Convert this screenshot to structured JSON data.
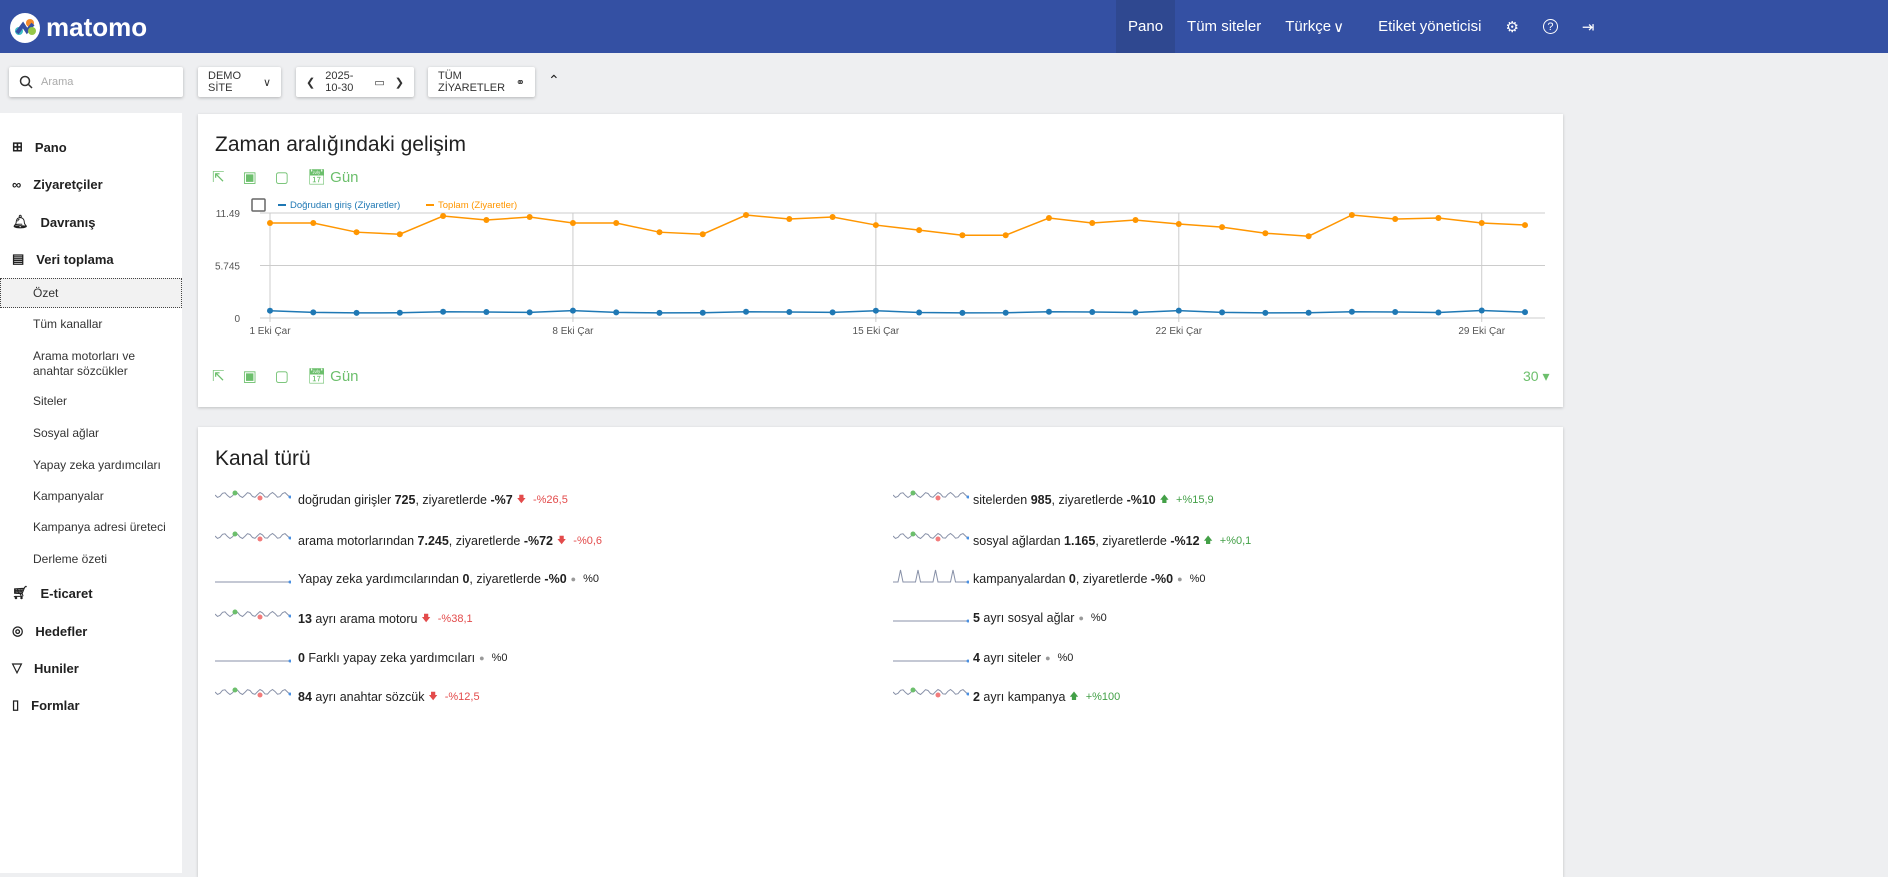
{
  "header": {
    "brand": "matomo",
    "nav": [
      "Pano",
      "Tüm siteler",
      "Türkçe",
      "Etiket yöneticisi"
    ]
  },
  "toolbar": {
    "search_placeholder": "Arama",
    "site": "DEMO SİTE",
    "date": "2025-10-30",
    "segment": "TÜM ZİYARETLER"
  },
  "sidebar": {
    "categories": [
      "Pano",
      "Ziyaretçiler",
      "Davranış",
      "Veri toplama",
      "E-ticaret",
      "Hedefler",
      "Huniler",
      "Formlar"
    ],
    "subitems": [
      "Özet",
      "Tüm kanallar",
      "Arama motorları ve anahtar sözcükler",
      "Siteler",
      "Sosyal ağlar",
      "Yapay zeka yardımcıları",
      "Kampanyalar",
      "Kampanya adresi üreteci",
      "Derleme özeti"
    ]
  },
  "evolution": {
    "title": "Zaman aralığındaki gelişim",
    "period": "Gün",
    "limit": "30"
  },
  "chart_data": {
    "type": "line",
    "title": "Zaman aralığındaki gelişim",
    "x": [
      "1 Eki Çar",
      "2",
      "3",
      "4",
      "5",
      "6",
      "7",
      "8 Eki Çar",
      "9",
      "10",
      "11",
      "12",
      "13",
      "14",
      "15 Eki Çar",
      "16",
      "17",
      "18",
      "19",
      "20",
      "21",
      "22 Eki Çar",
      "23",
      "24",
      "25",
      "26",
      "27",
      "28",
      "29 Eki Çar",
      "30"
    ],
    "x_tick_labels": [
      "1 Eki Çar",
      "8 Eki Çar",
      "15 Eki Çar",
      "22 Eki Çar",
      "29 Eki Çar"
    ],
    "y_tick_labels": [
      "0",
      "5.745",
      "11.49"
    ],
    "ylim": [
      0,
      11490
    ],
    "series": [
      {
        "name": "Doğrudan giriş (Ziyaretler)",
        "color": "#1f78b4",
        "values": [
          800,
          620,
          560,
          570,
          680,
          660,
          610,
          810,
          620,
          560,
          570,
          680,
          660,
          610,
          800,
          600,
          560,
          570,
          690,
          650,
          600,
          810,
          610,
          560,
          570,
          680,
          660,
          600,
          820,
          640
        ]
      },
      {
        "name": "Toplam (Ziyaretler)",
        "color": "#ff9600",
        "values": [
          10390,
          10390,
          9390,
          9170,
          11160,
          10720,
          11050,
          10390,
          10390,
          9390,
          9170,
          11270,
          10830,
          11050,
          10170,
          9610,
          9060,
          9060,
          10940,
          10390,
          10720,
          10280,
          9950,
          9280,
          8950,
          11270,
          10830,
          10940,
          10390,
          10170
        ]
      }
    ]
  },
  "channels": {
    "title": "Kanal türü",
    "left": [
      {
        "pre": "doğrudan girişler ",
        "value": "725",
        "mid": ", ziyaretlerde ",
        "change": "-%7",
        "trend": "down",
        "pct": "-%26,5"
      },
      {
        "pre": "arama motorlarından ",
        "value": "7.245",
        "mid": ", ziyaretlerde ",
        "change": "-%72",
        "trend": "down",
        "pct": "-%0,6"
      },
      {
        "pre": "Yapay zeka yardımcılarından ",
        "value": "0",
        "mid": ", ziyaretlerde ",
        "change": "-%0",
        "trend": "flat",
        "pct": "%0"
      },
      {
        "pre": "",
        "value": "13",
        "mid": " ayrı arama motoru",
        "change": "",
        "trend": "down",
        "pct": "-%38,1"
      },
      {
        "pre": "",
        "value": "0",
        "mid": " Farklı yapay zeka yardımcıları",
        "change": "",
        "trend": "flat",
        "pct": "%0"
      },
      {
        "pre": "",
        "value": "84",
        "mid": " ayrı anahtar sözcük",
        "change": "",
        "trend": "down",
        "pct": "-%12,5"
      }
    ],
    "right": [
      {
        "pre": "sitelerden ",
        "value": "985",
        "mid": ", ziyaretlerde ",
        "change": "-%10",
        "trend": "up",
        "pct": "+%15,9"
      },
      {
        "pre": "sosyal ağlardan ",
        "value": "1.165",
        "mid": ", ziyaretlerde ",
        "change": "-%12",
        "trend": "up",
        "pct": "+%0,1"
      },
      {
        "pre": "kampanyalardan ",
        "value": "0",
        "mid": ", ziyaretlerde ",
        "change": "-%0",
        "trend": "flat",
        "pct": "%0"
      },
      {
        "pre": "",
        "value": "5",
        "mid": " ayrı sosyal ağlar",
        "change": "",
        "trend": "flat",
        "pct": "%0"
      },
      {
        "pre": "",
        "value": "4",
        "mid": " ayrı siteler",
        "change": "",
        "trend": "flat",
        "pct": "%0"
      },
      {
        "pre": "",
        "value": "2",
        "mid": " ayrı kampanya",
        "change": "",
        "trend": "up",
        "pct": "+%100"
      }
    ]
  }
}
